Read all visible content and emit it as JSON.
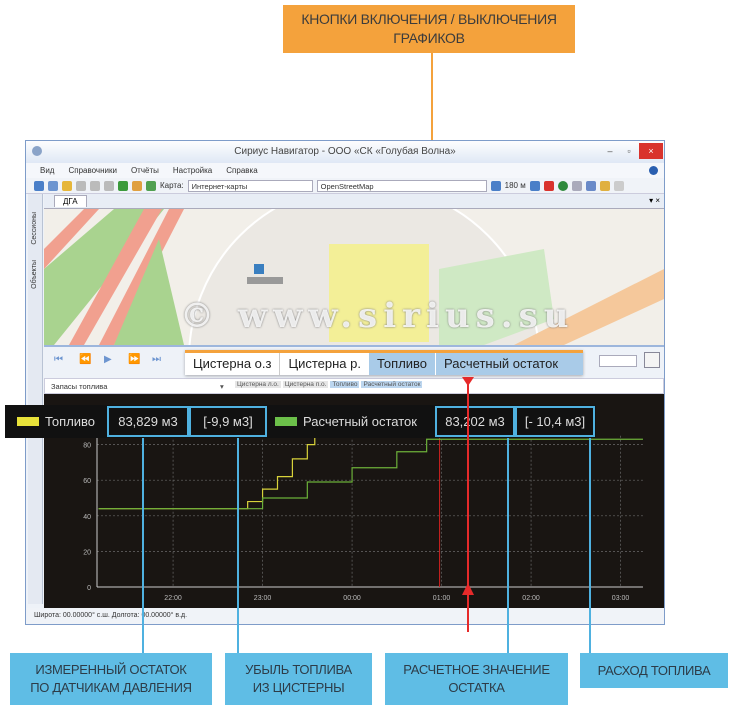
{
  "callout_top": {
    "line1": "КНОПКИ ВКЛЮЧЕНИЯ / ВЫКЛЮЧЕНИЯ",
    "line2": "ГРАФИКОВ"
  },
  "window": {
    "title": "Сириус Навигатор - ООО «СК «Голубая Волна»",
    "minimize": "–",
    "maximize": "▫",
    "close": "×"
  },
  "menu": [
    "Вид",
    "Справочники",
    "Отчёты",
    "Настройка",
    "Справка"
  ],
  "toolbar": {
    "map_label": "Карта:",
    "map_type": "Интернет-карты",
    "map_source": "OpenStreetMap",
    "scale": "180 м"
  },
  "tab": {
    "label": "ДГА",
    "controls": "▾ ×"
  },
  "sidebar": {
    "items": [
      "Сессионы",
      "Объекты"
    ]
  },
  "map": {
    "object_label": "Объект"
  },
  "playback": {
    "icons": [
      "first-icon",
      "rewind-icon",
      "play-icon",
      "fast-forward-icon",
      "last-icon"
    ]
  },
  "graph_select": {
    "value": "Запасы топлива",
    "mini_buttons": [
      "Цистерна л.о.",
      "Цистерна п.о.",
      "Топливо",
      "Расчетный остаток"
    ]
  },
  "toggle_buttons": [
    {
      "label": "Цистерна о.з",
      "active": false
    },
    {
      "label": "Цистерна р.",
      "active": false
    },
    {
      "label": "Топливо",
      "active": true
    },
    {
      "label": "Расчетный остаток",
      "active": true
    }
  ],
  "watermark": "© www.sirius.su",
  "legend": {
    "fuel_label": "Топливо",
    "fuel_value": "83,829 м3",
    "fuel_loss": "[-9,9 м3]",
    "calc_label": "Расчетный остаток",
    "calc_value": "83,202 м3",
    "calc_consumption": "[- 10,4 м3]",
    "fuel_color": "#e8e23a",
    "calc_color": "#6cc04a"
  },
  "status": {
    "coords": "Широта: 00.00000° с.ш. Долгота: 00.00000° в.д."
  },
  "callouts_bottom": [
    {
      "line1": "ИЗМЕРЕННЫЙ ОСТАТОК",
      "line2": "ПО ДАТЧИКАМ ДАВЛЕНИЯ"
    },
    {
      "line1": "УБЫЛЬ ТОПЛИВА",
      "line2": "ИЗ ЦИСТЕРНЫ"
    },
    {
      "line1": "РАСЧЕТНОЕ ЗНАЧЕНИЕ",
      "line2": "ОСТАТКА"
    },
    {
      "line1": "РАСХОД ТОПЛИВА",
      "line2": ""
    }
  ],
  "chart_data": {
    "type": "line",
    "ylim": [
      0,
      85
    ],
    "yticks": [
      "0",
      "20",
      "40",
      "60",
      "80"
    ],
    "xticks": [
      "22:00",
      "23:00",
      "00:00",
      "01:00",
      "02:00",
      "03:00"
    ],
    "grid": true,
    "cursor_time": "01:00",
    "series": [
      {
        "name": "Топливо",
        "color": "#d8d23a",
        "points": [
          [
            "21:10",
            44
          ],
          [
            "22:45",
            44
          ],
          [
            "22:50",
            48
          ],
          [
            "23:00",
            55
          ],
          [
            "23:10",
            62
          ],
          [
            "23:20",
            72
          ],
          [
            "23:30",
            80
          ],
          [
            "23:35",
            84
          ]
        ]
      },
      {
        "name": "Расчетный остаток",
        "color": "#6cb03a",
        "points": [
          [
            "21:10",
            44
          ],
          [
            "22:35",
            44
          ],
          [
            "23:00",
            50
          ],
          [
            "23:30",
            59
          ],
          [
            "00:00",
            67
          ],
          [
            "00:30",
            76
          ],
          [
            "00:50",
            83
          ],
          [
            "03:15",
            83
          ]
        ]
      }
    ]
  }
}
